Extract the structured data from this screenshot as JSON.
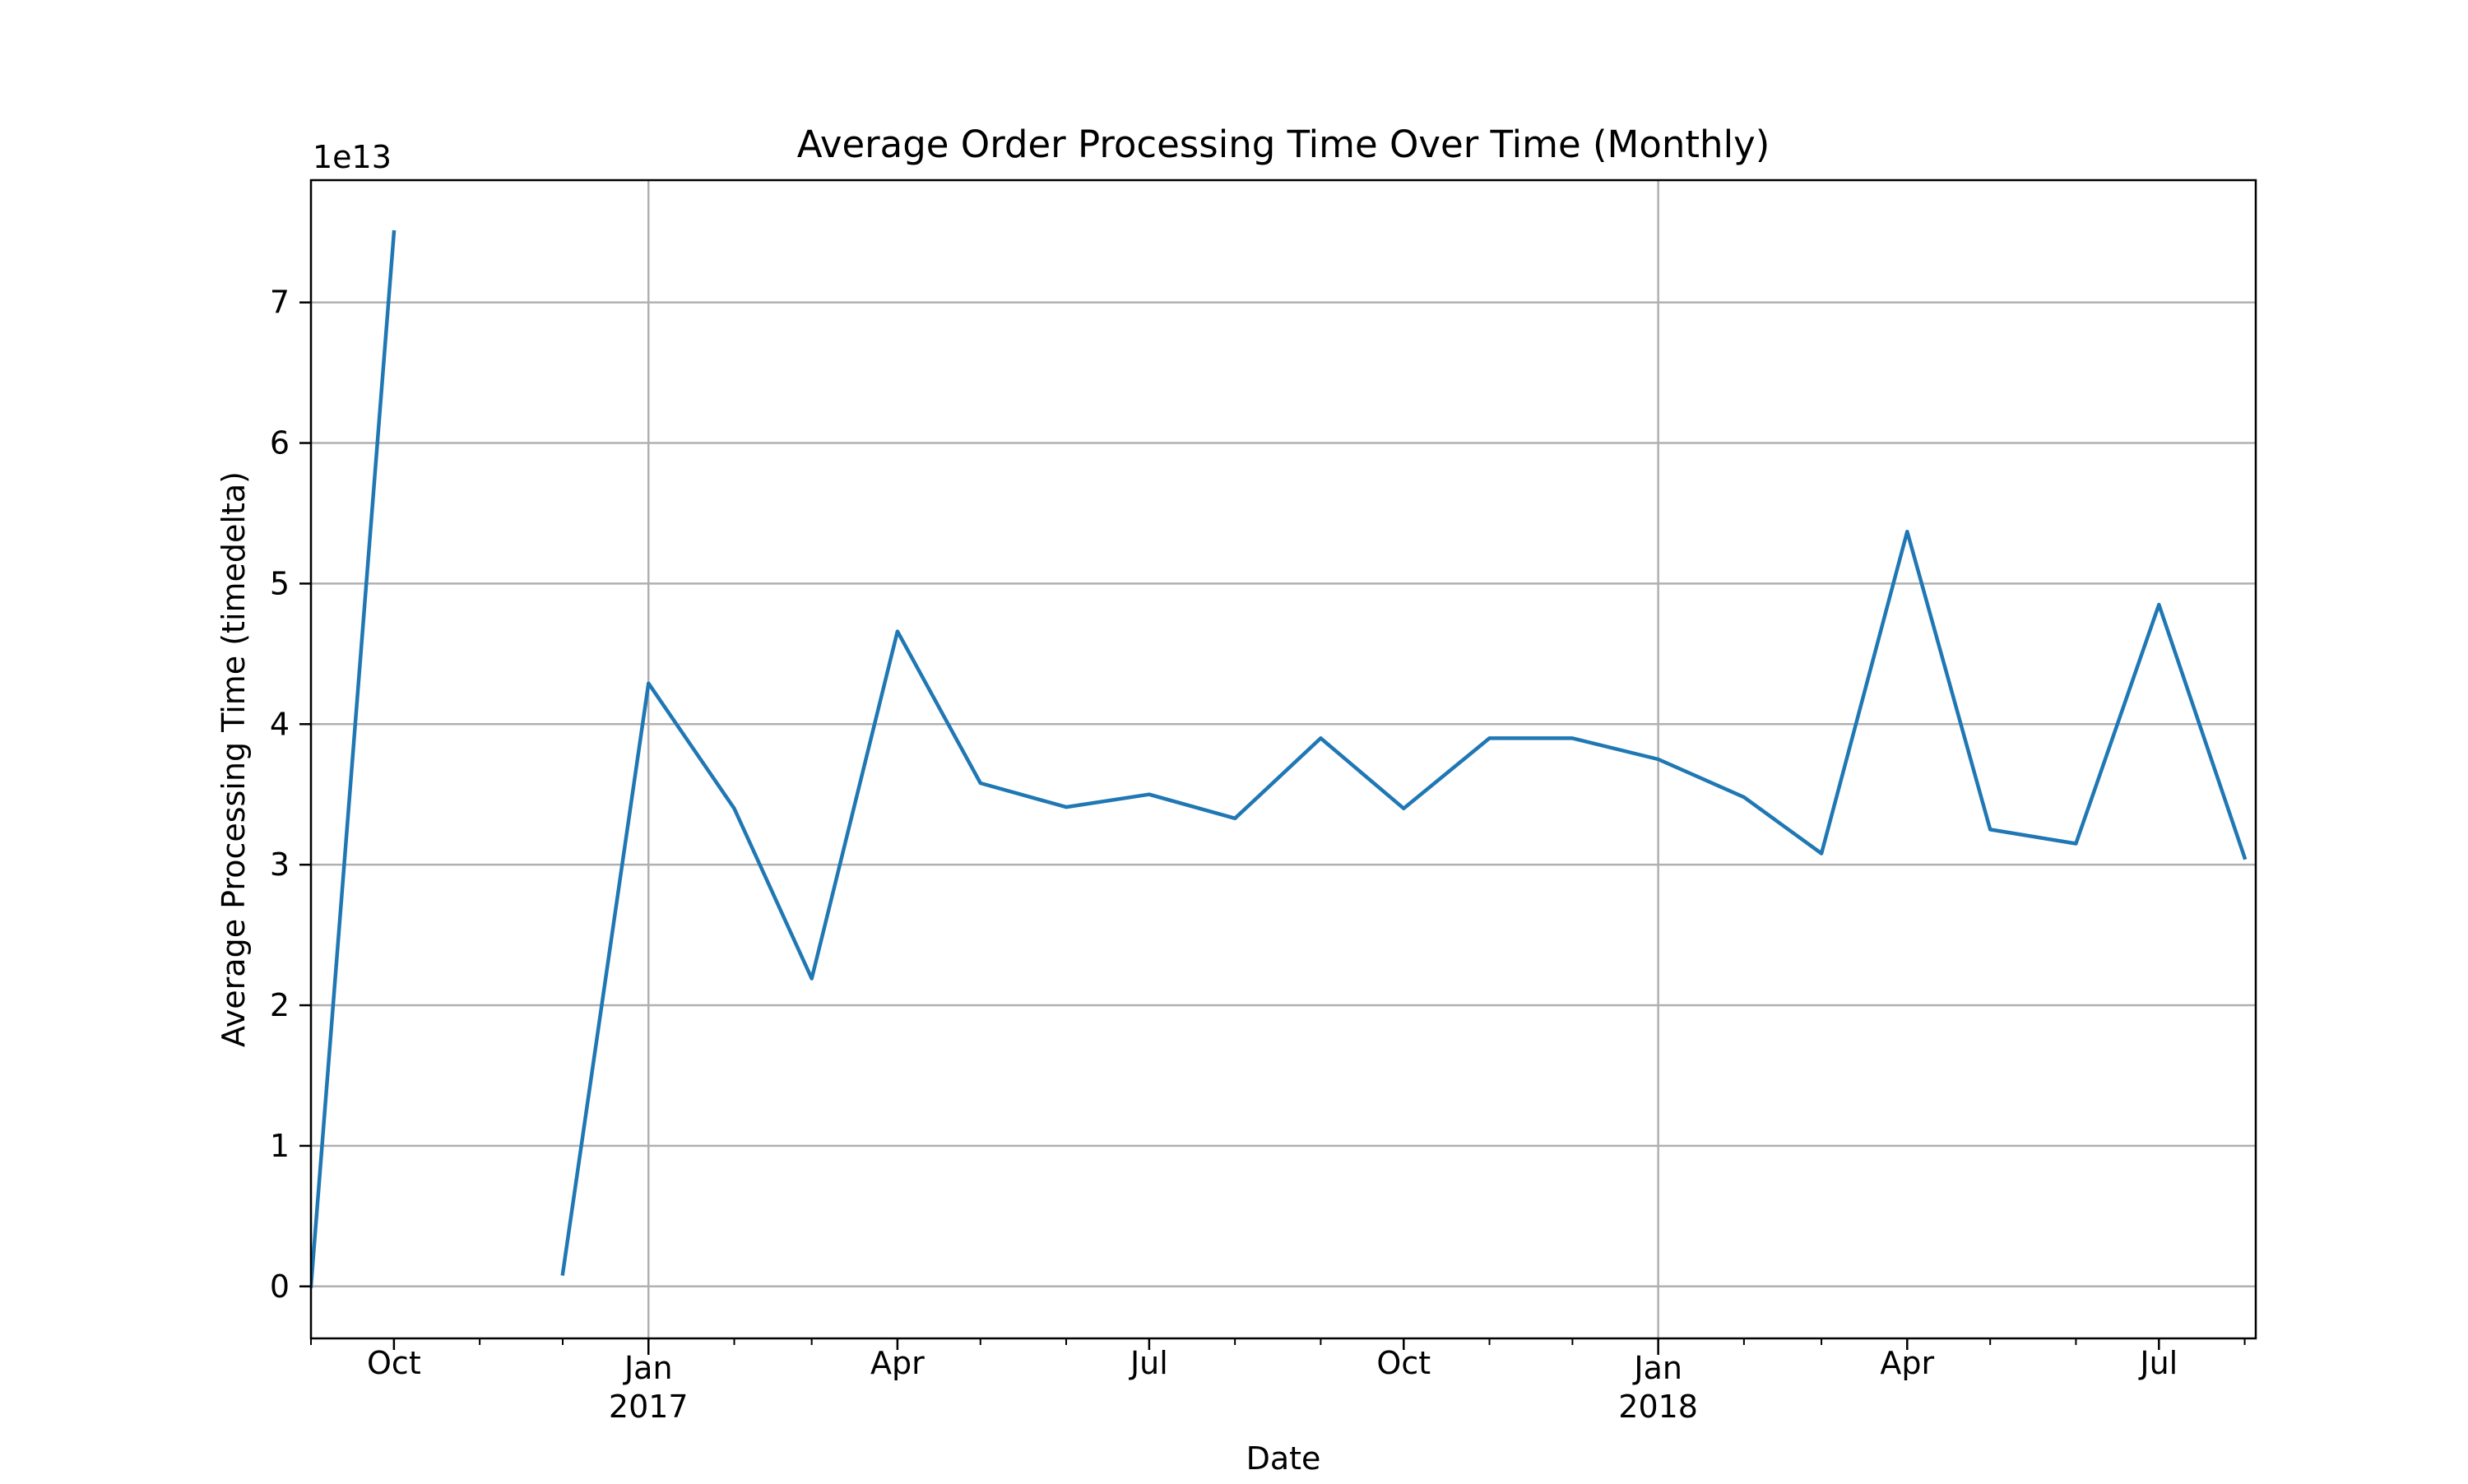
{
  "chart_data": {
    "type": "line",
    "title": "Average Order Processing Time Over Time (Monthly)",
    "xlabel": "Date",
    "ylabel": "Average Processing Time (timedelta)",
    "y_offset_label": "1e13",
    "y_scale": 10000000000000.0,
    "grid": true,
    "legend": "none",
    "xlim": [
      "2016-09-01",
      "2018-08-05"
    ],
    "ylim": [
      -0.37,
      7.87
    ],
    "y_ticks": [
      0,
      1,
      2,
      3,
      4,
      5,
      6,
      7
    ],
    "y_tick_labels": [
      "0",
      "1",
      "2",
      "3",
      "4",
      "5",
      "6",
      "7"
    ],
    "x_ticks": [
      {
        "date": "2016-10-01",
        "label": "Oct",
        "year": "",
        "grid": false
      },
      {
        "date": "2017-01-01",
        "label": "Jan",
        "year": "2017",
        "grid": true
      },
      {
        "date": "2017-04-01",
        "label": "Apr",
        "year": "",
        "grid": false
      },
      {
        "date": "2017-07-01",
        "label": "Jul",
        "year": "",
        "grid": false
      },
      {
        "date": "2017-10-01",
        "label": "Oct",
        "year": "",
        "grid": false
      },
      {
        "date": "2018-01-01",
        "label": "Jan",
        "year": "2018",
        "grid": true
      },
      {
        "date": "2018-04-01",
        "label": "Apr",
        "year": "",
        "grid": false
      },
      {
        "date": "2018-07-01",
        "label": "Jul",
        "year": "",
        "grid": false
      }
    ],
    "minor_ticks": [
      "2016-09-01",
      "2016-11-01",
      "2016-12-01",
      "2017-02-01",
      "2017-03-01",
      "2017-05-01",
      "2017-06-01",
      "2017-08-01",
      "2017-09-01",
      "2017-11-01",
      "2017-12-01",
      "2018-02-01",
      "2018-03-01",
      "2018-05-01",
      "2018-06-01",
      "2018-08-01"
    ],
    "series": [
      {
        "color": "#1f77b4",
        "segments": [
          [
            {
              "x": "2016-09-01",
              "y": 0.0
            },
            {
              "x": "2016-10-01",
              "y": 7.5
            }
          ],
          [
            {
              "x": "2016-12-01",
              "y": 0.09
            },
            {
              "x": "2017-01-01",
              "y": 4.29
            },
            {
              "x": "2017-02-01",
              "y": 3.4
            },
            {
              "x": "2017-03-01",
              "y": 2.19
            },
            {
              "x": "2017-04-01",
              "y": 4.66
            },
            {
              "x": "2017-05-01",
              "y": 3.58
            },
            {
              "x": "2017-06-01",
              "y": 3.41
            },
            {
              "x": "2017-07-01",
              "y": 3.5
            },
            {
              "x": "2017-08-01",
              "y": 3.33
            },
            {
              "x": "2017-09-01",
              "y": 3.9
            },
            {
              "x": "2017-10-01",
              "y": 3.4
            },
            {
              "x": "2017-11-01",
              "y": 3.9
            },
            {
              "x": "2017-12-01",
              "y": 3.9
            },
            {
              "x": "2018-01-01",
              "y": 3.75
            },
            {
              "x": "2018-02-01",
              "y": 3.48
            },
            {
              "x": "2018-03-01",
              "y": 3.08
            },
            {
              "x": "2018-04-01",
              "y": 5.37
            },
            {
              "x": "2018-05-01",
              "y": 3.25
            },
            {
              "x": "2018-06-01",
              "y": 3.15
            },
            {
              "x": "2018-07-01",
              "y": 4.85
            },
            {
              "x": "2018-08-01",
              "y": 3.05
            }
          ]
        ]
      }
    ]
  }
}
